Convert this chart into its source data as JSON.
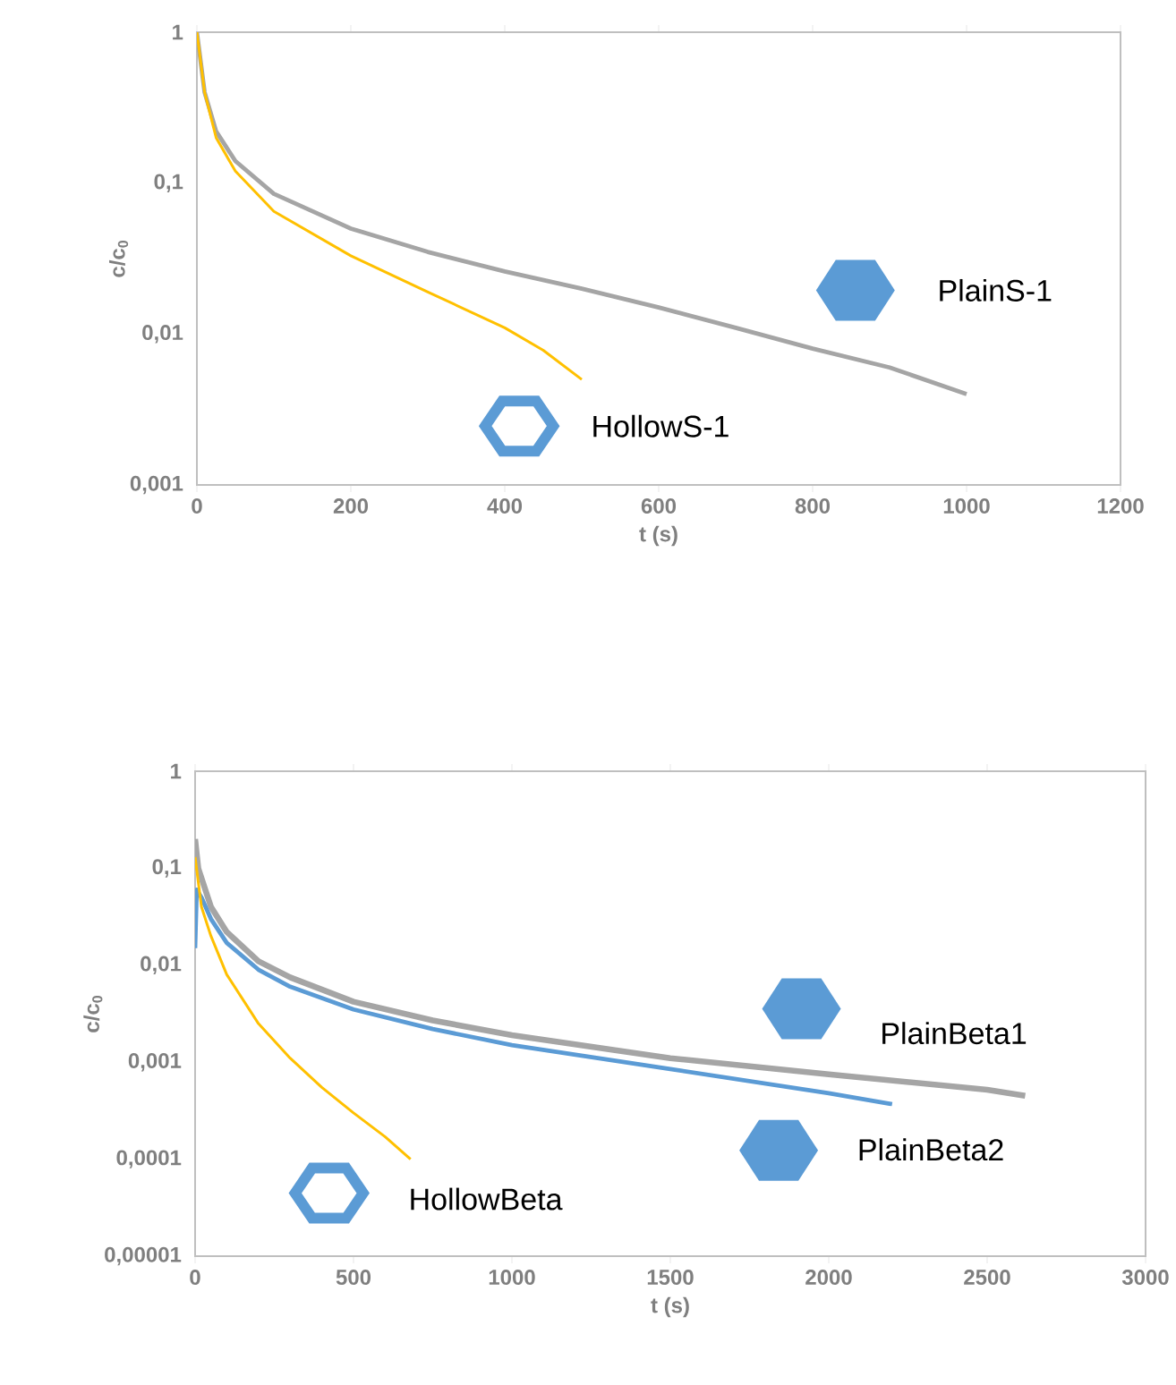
{
  "chart_data": [
    {
      "type": "line",
      "xlabel": "t (s)",
      "ylabel": "c/c$_{0}$",
      "log": true,
      "xlim": [
        0,
        1200
      ],
      "xticks": [
        0,
        200,
        400,
        600,
        800,
        1000,
        1200
      ],
      "ylim": [
        0.001,
        1
      ],
      "yticks": [
        {
          "value": 0.001,
          "label": "0,001"
        },
        {
          "value": 0.01,
          "label": "0,01"
        },
        {
          "value": 0.1,
          "label": "0,1"
        },
        1
      ],
      "grid": false,
      "annotations": [
        "PlainS-1",
        "HollowS-1"
      ],
      "series": [
        {
          "color": "#a5a5a5",
          "x": [
            0,
            10,
            25,
            50,
            100,
            200,
            300,
            400,
            500,
            600,
            700,
            800,
            900,
            1000
          ],
          "values": [
            1,
            0.4,
            0.22,
            0.14,
            0.085,
            0.05,
            0.035,
            0.026,
            0.02,
            0.015,
            0.011,
            0.008,
            0.006,
            0.004
          ]
        },
        {
          "color": "#ffc000",
          "x": [
            0,
            10,
            25,
            50,
            100,
            200,
            300,
            400,
            450,
            500
          ],
          "values": [
            1,
            0.4,
            0.2,
            0.12,
            0.065,
            0.033,
            0.019,
            0.011,
            0.0078,
            0.005
          ]
        }
      ]
    },
    {
      "type": "line",
      "xlabel": "t (s)",
      "ylabel": "c/c$_{0}$",
      "log": true,
      "xlim": [
        0,
        3000
      ],
      "xticks": [
        0,
        500,
        1000,
        1500,
        2000,
        2500,
        3000
      ],
      "ylim": [
        1e-05,
        1
      ],
      "yticks": [
        {
          "value": 1e-05,
          "label": "0,00001"
        },
        {
          "value": 0.0001,
          "label": "0,0001"
        },
        {
          "value": 0.001,
          "label": "0,001"
        },
        {
          "value": 0.01,
          "label": "0,01"
        },
        {
          "value": 0.1,
          "label": "0,1"
        },
        1
      ],
      "grid": false,
      "annotations": [
        "PlainBeta1",
        "PlainBeta2",
        "HollowBeta"
      ],
      "series": [
        {
          "color": "#a5a5a5",
          "x": [
            0,
            10,
            50,
            100,
            200,
            300,
            500,
            750,
            1000,
            1500,
            2000,
            2500,
            2620
          ],
          "values": [
            0.2,
            0.1,
            0.04,
            0.022,
            0.011,
            0.0075,
            0.0042,
            0.0027,
            0.0019,
            0.0011,
            0.00075,
            0.00052,
            0.00045
          ]
        },
        {
          "color": "#5b9bd5",
          "x": [
            0,
            5,
            20,
            50,
            100,
            200,
            300,
            500,
            750,
            1000,
            1500,
            2000,
            2200
          ],
          "values": [
            0.015,
            0.06,
            0.05,
            0.03,
            0.017,
            0.009,
            0.006,
            0.0035,
            0.0022,
            0.0015,
            0.00085,
            0.00048,
            0.00037
          ]
        },
        {
          "color": "#ffc000",
          "x": [
            0,
            20,
            50,
            100,
            200,
            300,
            400,
            500,
            600,
            680
          ],
          "values": [
            0.13,
            0.04,
            0.02,
            0.008,
            0.0025,
            0.0011,
            0.00055,
            0.0003,
            0.00017,
            0.0001
          ]
        }
      ]
    }
  ]
}
